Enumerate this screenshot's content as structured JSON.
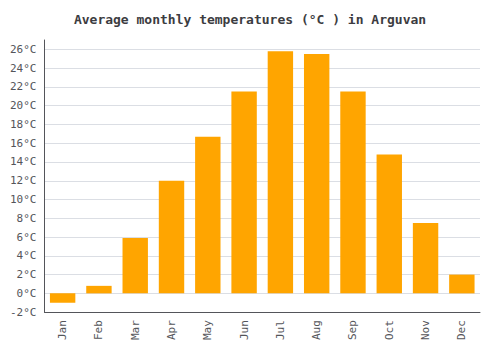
{
  "chart_data": {
    "type": "bar",
    "title": "Average monthly temperatures (°C ) in Arguvan",
    "categories": [
      "Jan",
      "Feb",
      "Mar",
      "Apr",
      "May",
      "Jun",
      "Jul",
      "Aug",
      "Sep",
      "Oct",
      "Nov",
      "Dec"
    ],
    "values": [
      -1.0,
      0.8,
      5.9,
      12.0,
      16.7,
      21.5,
      25.8,
      25.5,
      21.5,
      14.8,
      7.5,
      2.0
    ],
    "color": "#FFA500",
    "ylim": [
      -2,
      27
    ],
    "yticks": [
      {
        "value": -2,
        "label": "-2°C"
      },
      {
        "value": 0,
        "label": "0°C"
      },
      {
        "value": 2,
        "label": "2°C"
      },
      {
        "value": 4,
        "label": "4°C"
      },
      {
        "value": 6,
        "label": "6°C"
      },
      {
        "value": 8,
        "label": "8°C"
      },
      {
        "value": 10,
        "label": "10°C"
      },
      {
        "value": 12,
        "label": "12°C"
      },
      {
        "value": 14,
        "label": "14°C"
      },
      {
        "value": 16,
        "label": "16°C"
      },
      {
        "value": 18,
        "label": "18°C"
      },
      {
        "value": 20,
        "label": "20°C"
      },
      {
        "value": 22,
        "label": "22°C"
      },
      {
        "value": 24,
        "label": "24°C"
      },
      {
        "value": 26,
        "label": "26°C"
      }
    ],
    "grid": true
  }
}
